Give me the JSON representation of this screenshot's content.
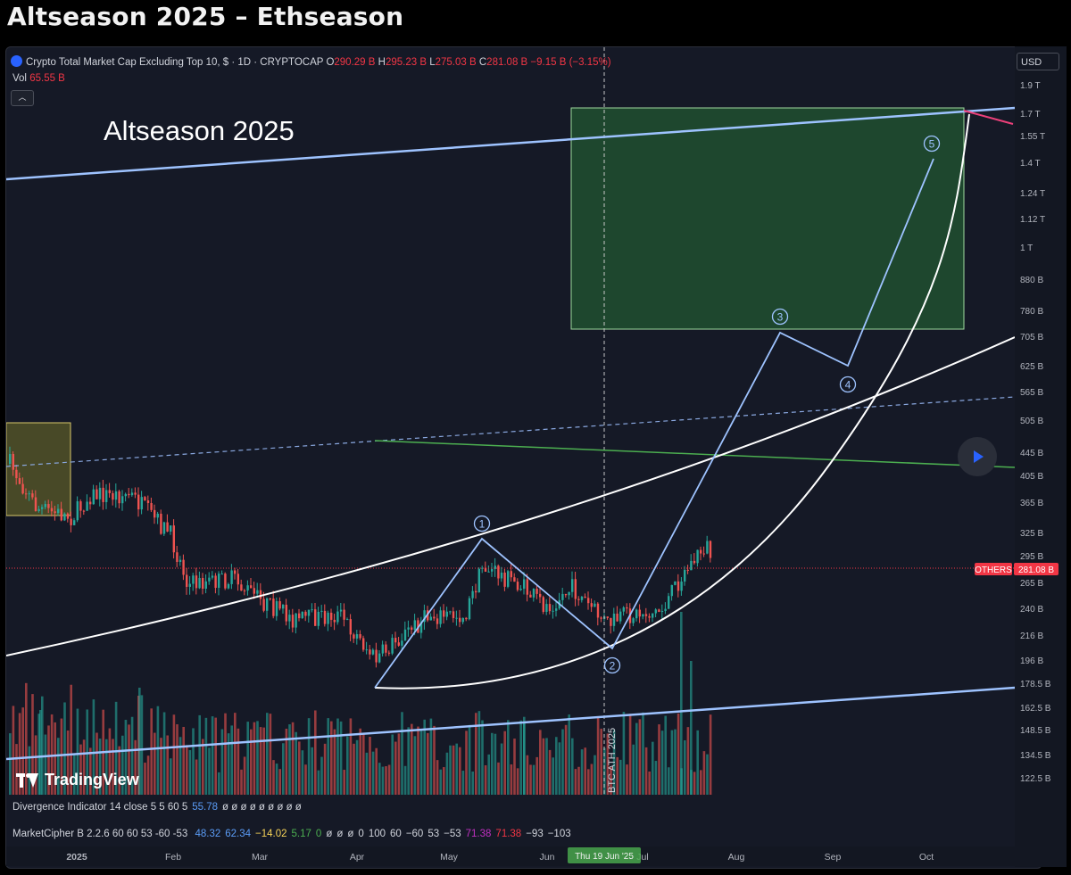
{
  "page": {
    "title": "Altseason 2025 – Ethseason"
  },
  "header": {
    "symbol": "Crypto Total Market Cap Excluding Top 10, $ · 1D · CRYPTOCAP",
    "o_label": "O",
    "o_value": "290.29 B",
    "h_label": "H",
    "h_value": "295.23 B",
    "l_label": "L",
    "l_value": "275.03 B",
    "c_label": "C",
    "c_value": "281.08 B",
    "change": "−9.15 B (−3.15%)",
    "vol_label": "Vol",
    "vol_value": "65.55 B",
    "currency_button": "USD"
  },
  "indicators": {
    "divergence": {
      "name": "Divergence Indicator 14 close 5 5 60 5",
      "value": "55.78",
      "rest": "ø ø ø ø ø ø ø ø ø"
    },
    "marketcipher": {
      "name": "MarketCipher B 2.2.6 60 60 53 -60 -53",
      "values": [
        "48.32",
        "62.34",
        "−14.02",
        "5.17",
        "0",
        "ø",
        "ø",
        "ø",
        "0",
        "100",
        "60",
        "−60",
        "53",
        "−53",
        "71.38",
        "71.38",
        "−93",
        "−103"
      ],
      "colors": [
        "#5b9cf6",
        "#5b9cf6",
        "#f7d358",
        "#4caf50",
        "#4caf50",
        "#d1d4dc",
        "#d1d4dc",
        "#d1d4dc",
        "#d1d4dc",
        "#d1d4dc",
        "#d1d4dc",
        "#d1d4dc",
        "#d1d4dc",
        "#d1d4dc",
        "#c030c0",
        "#f23645",
        "#d1d4dc",
        "#d1d4dc"
      ]
    }
  },
  "logo": {
    "text": "TradingView"
  },
  "chart_data": {
    "type": "candlestick",
    "y_scale": "log",
    "price_ticks": [
      "1.9 T",
      "1.7 T",
      "1.55 T",
      "1.4 T",
      "1.24 T",
      "1.12 T",
      "1 T",
      "880 B",
      "780 B",
      "705 B",
      "625 B",
      "565 B",
      "505 B",
      "445 B",
      "405 B",
      "365 B",
      "325 B",
      "295 B",
      "265 B",
      "240 B",
      "216 B",
      "196 B",
      "178.5 B",
      "162.5 B",
      "148.5 B",
      "134.5 B",
      "122.5 B"
    ],
    "time_ticks": [
      "2025",
      "Feb",
      "Mar",
      "Apr",
      "May",
      "Jun",
      "Jul",
      "Aug",
      "Sep",
      "Oct"
    ],
    "crosshair_date": "Thu 19 Jun '25",
    "current_price_label": "OTHERS",
    "current_price": "281.08 B",
    "annotation_text": "Altseason 2025",
    "vertical_marker": "BTC ATH 2025",
    "wave_labels": [
      "1",
      "2",
      "3",
      "4",
      "5"
    ],
    "colors": {
      "up": "#26a69a",
      "down": "#ef5350",
      "channel": "#9ec3ff",
      "target_box": "#1f4a2e",
      "price_tag": "#f23645"
    }
  }
}
